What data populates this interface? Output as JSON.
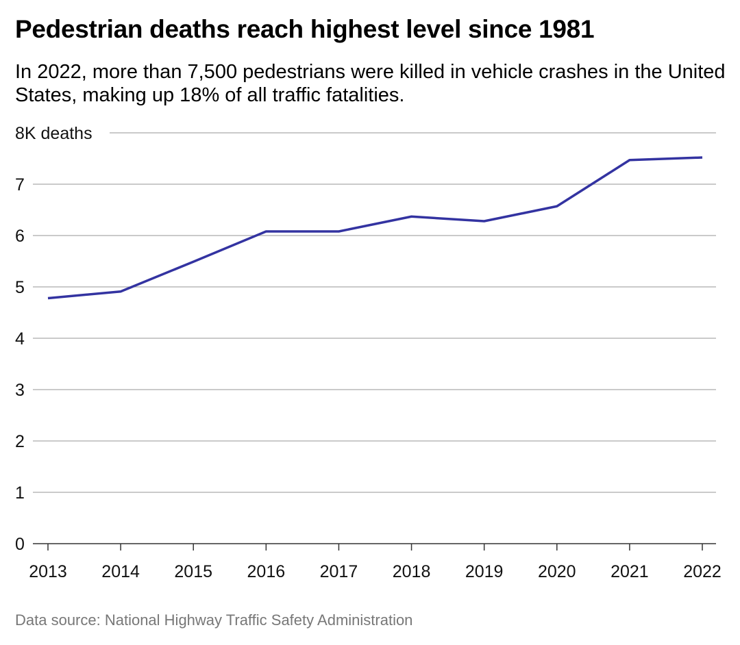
{
  "chart_data": {
    "type": "line",
    "title": "Pedestrian deaths reach highest level since 1981",
    "subtitle": "In 2022, more than 7,500 pedestrians were killed in vehicle crashes in the United States, making up 18% of all traffic fatalities.",
    "x": [
      "2013",
      "2014",
      "2015",
      "2016",
      "2017",
      "2018",
      "2019",
      "2020",
      "2021",
      "2022"
    ],
    "series": [
      {
        "values": [
          4.78,
          4.91,
          5.49,
          6.08,
          6.08,
          6.37,
          6.28,
          6.57,
          7.47,
          7.52
        ],
        "color": "#3333a1"
      }
    ],
    "ylim": [
      0,
      8
    ],
    "yticks": [
      "0",
      "1",
      "2",
      "3",
      "4",
      "5",
      "6",
      "7",
      "8K deaths"
    ],
    "grid": true,
    "source": "Data source: National Highway Traffic Safety Administration"
  }
}
